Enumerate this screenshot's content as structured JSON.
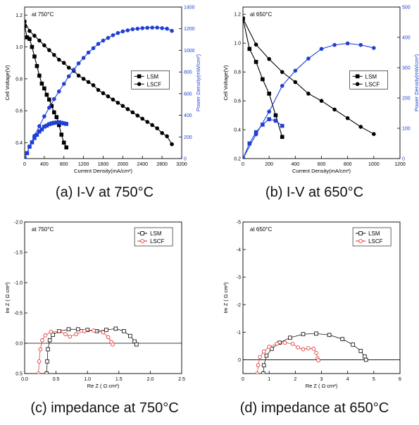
{
  "captions": [
    "(a) I-V at 750°C",
    "(b) I-V at 650°C",
    "(c) impedance at 750°C",
    "(d) impedance at 650°C"
  ],
  "colors": {
    "black": "#000000",
    "blue": "#1f3fd6",
    "red": "#e02020"
  },
  "chart_data": [
    {
      "type": "line",
      "annotation": "at 750°C",
      "xlabel": "Current Density(mA/cm²)",
      "ylabel": "Cell Voltage(V)",
      "y2label": "Power Density(mW/cm²)",
      "xlim": [
        0,
        3200
      ],
      "ylim": [
        0.3,
        1.25
      ],
      "y2lim": [
        0,
        1400
      ],
      "xticks": [
        0,
        400,
        800,
        1200,
        1600,
        2000,
        2400,
        2800,
        3200
      ],
      "yticks": [
        0.4,
        0.6,
        0.8,
        1.0,
        1.2
      ],
      "y2ticks": [
        0,
        200,
        400,
        600,
        800,
        1000,
        1200,
        1400
      ],
      "legend": {
        "position": "center-right",
        "entries": [
          "LSM",
          "LSCF"
        ]
      },
      "series": [
        {
          "name": "LSM",
          "axis": "left",
          "color": "#000000",
          "marker": "square",
          "points": [
            [
              0,
              1.13
            ],
            [
              50,
              1.06
            ],
            [
              100,
              1.05
            ],
            [
              150,
              1.0
            ],
            [
              200,
              0.94
            ],
            [
              250,
              0.88
            ],
            [
              300,
              0.82
            ],
            [
              350,
              0.77
            ],
            [
              400,
              0.74
            ],
            [
              450,
              0.7
            ],
            [
              500,
              0.67
            ],
            [
              550,
              0.63
            ],
            [
              600,
              0.59
            ],
            [
              650,
              0.56
            ],
            [
              700,
              0.51
            ],
            [
              750,
              0.45
            ],
            [
              800,
              0.4
            ],
            [
              850,
              0.37
            ]
          ]
        },
        {
          "name": "LSCF",
          "axis": "left",
          "color": "#000000",
          "marker": "circle",
          "points": [
            [
              0,
              1.16
            ],
            [
              100,
              1.1
            ],
            [
              200,
              1.07
            ],
            [
              300,
              1.04
            ],
            [
              400,
              1.01
            ],
            [
              500,
              0.98
            ],
            [
              600,
              0.95
            ],
            [
              700,
              0.92
            ],
            [
              800,
              0.9
            ],
            [
              900,
              0.87
            ],
            [
              1000,
              0.85
            ],
            [
              1100,
              0.82
            ],
            [
              1200,
              0.8
            ],
            [
              1300,
              0.78
            ],
            [
              1400,
              0.76
            ],
            [
              1500,
              0.73
            ],
            [
              1600,
              0.71
            ],
            [
              1700,
              0.69
            ],
            [
              1800,
              0.67
            ],
            [
              1900,
              0.65
            ],
            [
              2000,
              0.63
            ],
            [
              2100,
              0.61
            ],
            [
              2200,
              0.59
            ],
            [
              2300,
              0.57
            ],
            [
              2400,
              0.55
            ],
            [
              2500,
              0.53
            ],
            [
              2600,
              0.51
            ],
            [
              2700,
              0.49
            ],
            [
              2800,
              0.46
            ],
            [
              2900,
              0.44
            ],
            [
              3000,
              0.39
            ]
          ]
        },
        {
          "name": "LSM",
          "axis": "right",
          "color": "#1f3fd6",
          "marker": "square",
          "points": [
            [
              0,
              0
            ],
            [
              50,
              50
            ],
            [
              100,
              110
            ],
            [
              150,
              150
            ],
            [
              200,
              190
            ],
            [
              250,
              220
            ],
            [
              300,
              250
            ],
            [
              350,
              270
            ],
            [
              400,
              295
            ],
            [
              450,
              305
            ],
            [
              500,
              318
            ],
            [
              550,
              325
            ],
            [
              600,
              330
            ],
            [
              650,
              333
            ],
            [
              700,
              336
            ],
            [
              750,
              330
            ],
            [
              800,
              325
            ],
            [
              850,
              320
            ]
          ]
        },
        {
          "name": "LSCF",
          "axis": "right",
          "color": "#1f3fd6",
          "marker": "circle",
          "points": [
            [
              0,
              0
            ],
            [
              100,
              110
            ],
            [
              200,
              210
            ],
            [
              300,
              300
            ],
            [
              400,
              390
            ],
            [
              500,
              470
            ],
            [
              600,
              550
            ],
            [
              700,
              620
            ],
            [
              800,
              690
            ],
            [
              900,
              760
            ],
            [
              1000,
              820
            ],
            [
              1100,
              880
            ],
            [
              1200,
              930
            ],
            [
              1300,
              980
            ],
            [
              1400,
              1020
            ],
            [
              1500,
              1060
            ],
            [
              1600,
              1090
            ],
            [
              1700,
              1115
            ],
            [
              1800,
              1140
            ],
            [
              1900,
              1160
            ],
            [
              2000,
              1175
            ],
            [
              2100,
              1185
            ],
            [
              2200,
              1195
            ],
            [
              2300,
              1200
            ],
            [
              2400,
              1205
            ],
            [
              2500,
              1208
            ],
            [
              2600,
              1210
            ],
            [
              2700,
              1210
            ],
            [
              2800,
              1205
            ],
            [
              2900,
              1200
            ],
            [
              3000,
              1180
            ]
          ]
        }
      ]
    },
    {
      "type": "line",
      "annotation": "at 650°C",
      "xlabel": "Current Density(mA/cm²)",
      "ylabel": "Cell Voltage(V)",
      "y2label": "Power Density(mW/cm²)",
      "xlim": [
        0,
        1200
      ],
      "ylim": [
        0.2,
        1.25
      ],
      "y2lim": [
        0,
        500
      ],
      "xticks": [
        0,
        200,
        400,
        600,
        800,
        1000,
        1200
      ],
      "yticks": [
        0.2,
        0.4,
        0.6,
        0.8,
        1.0,
        1.2
      ],
      "y2ticks": [
        0,
        100,
        200,
        300,
        400,
        500
      ],
      "legend": {
        "position": "center-right",
        "entries": [
          "LSM",
          "LSCF"
        ]
      },
      "series": [
        {
          "name": "LSM",
          "axis": "left",
          "color": "#000000",
          "marker": "square",
          "points": [
            [
              0,
              1.17
            ],
            [
              50,
              0.96
            ],
            [
              100,
              0.87
            ],
            [
              150,
              0.75
            ],
            [
              200,
              0.65
            ],
            [
              250,
              0.5
            ],
            [
              300,
              0.35
            ]
          ]
        },
        {
          "name": "LSCF",
          "axis": "left",
          "color": "#000000",
          "marker": "circle",
          "points": [
            [
              0,
              1.17
            ],
            [
              100,
              0.99
            ],
            [
              200,
              0.89
            ],
            [
              300,
              0.8
            ],
            [
              400,
              0.73
            ],
            [
              500,
              0.65
            ],
            [
              600,
              0.6
            ],
            [
              700,
              0.54
            ],
            [
              800,
              0.48
            ],
            [
              900,
              0.42
            ],
            [
              1000,
              0.37
            ]
          ]
        },
        {
          "name": "LSM",
          "axis": "right",
          "color": "#1f3fd6",
          "marker": "square",
          "points": [
            [
              0,
              0
            ],
            [
              50,
              50
            ],
            [
              100,
              87
            ],
            [
              150,
              112
            ],
            [
              200,
              130
            ],
            [
              250,
              125
            ],
            [
              300,
              108
            ]
          ]
        },
        {
          "name": "LSCF",
          "axis": "right",
          "color": "#1f3fd6",
          "marker": "circle",
          "points": [
            [
              0,
              0
            ],
            [
              100,
              80
            ],
            [
              200,
              155
            ],
            [
              300,
              240
            ],
            [
              400,
              290
            ],
            [
              500,
              330
            ],
            [
              600,
              362
            ],
            [
              700,
              375
            ],
            [
              800,
              380
            ],
            [
              900,
              375
            ],
            [
              1000,
              365
            ]
          ]
        }
      ]
    },
    {
      "type": "scatter",
      "annotation": "at 750°C",
      "xlabel": "Re Z ( Ω cm²)",
      "ylabel": "Im Z ( Ω cm²)",
      "xlim": [
        0,
        2.5
      ],
      "ylim": [
        -2.0,
        0.5
      ],
      "xticks": [
        0.0,
        0.5,
        1.0,
        1.5,
        2.0,
        2.5
      ],
      "xtick_labels": [
        "0.0",
        "0.5",
        "1.0",
        "1.5",
        "2.0",
        "2.5"
      ],
      "yticks": [
        -2.0,
        -1.5,
        -1.0,
        -0.5,
        0.0,
        0.5
      ],
      "ytick_labels": [
        "-2.0",
        "-1.5",
        "-1.0",
        "-0.5",
        "0.0",
        "0.5"
      ],
      "legend": {
        "position": "top-right",
        "entries": [
          "LSM",
          "LSCF"
        ]
      },
      "series": [
        {
          "name": "LSM",
          "color": "#000000",
          "marker": "open-square",
          "points": [
            [
              0.35,
              0.5
            ],
            [
              0.36,
              0.3
            ],
            [
              0.37,
              0.1
            ],
            [
              0.4,
              -0.05
            ],
            [
              0.45,
              -0.14
            ],
            [
              0.55,
              -0.2
            ],
            [
              0.7,
              -0.23
            ],
            [
              0.85,
              -0.23
            ],
            [
              1.0,
              -0.22
            ],
            [
              1.15,
              -0.2
            ],
            [
              1.3,
              -0.22
            ],
            [
              1.45,
              -0.24
            ],
            [
              1.58,
              -0.2
            ],
            [
              1.68,
              -0.12
            ],
            [
              1.75,
              -0.03
            ],
            [
              1.78,
              0.02
            ]
          ]
        },
        {
          "name": "LSCF",
          "color": "#e02020",
          "marker": "open-circle",
          "points": [
            [
              0.22,
              0.5
            ],
            [
              0.23,
              0.3
            ],
            [
              0.25,
              0.1
            ],
            [
              0.28,
              -0.05
            ],
            [
              0.33,
              -0.13
            ],
            [
              0.42,
              -0.19
            ],
            [
              0.55,
              -0.2
            ],
            [
              0.65,
              -0.15
            ],
            [
              0.72,
              -0.11
            ],
            [
              0.82,
              -0.15
            ],
            [
              0.95,
              -0.2
            ],
            [
              1.1,
              -0.21
            ],
            [
              1.25,
              -0.18
            ],
            [
              1.33,
              -0.1
            ],
            [
              1.38,
              -0.02
            ],
            [
              1.4,
              0.02
            ]
          ]
        }
      ]
    },
    {
      "type": "scatter",
      "annotation": "at 650°C",
      "xlabel": "Re Z ( Ω cm²)",
      "ylabel": "Im Z ( Ω cm²)",
      "xlim": [
        0,
        6
      ],
      "ylim": [
        -5,
        0.5
      ],
      "xticks": [
        0,
        1,
        2,
        3,
        4,
        5,
        6
      ],
      "xtick_labels": [
        "0",
        "1",
        "2",
        "3",
        "4",
        "5",
        "6"
      ],
      "yticks": [
        -5,
        -4,
        -3,
        -2,
        -1,
        0
      ],
      "ytick_labels": [
        "-5",
        "-4",
        "-3",
        "-2",
        "-1",
        "0"
      ],
      "legend": {
        "position": "top-right",
        "entries": [
          "LSM",
          "LSCF"
        ]
      },
      "series": [
        {
          "name": "LSM",
          "color": "#000000",
          "marker": "open-square",
          "points": [
            [
              0.78,
              0.5
            ],
            [
              0.8,
              0.2
            ],
            [
              0.9,
              -0.15
            ],
            [
              1.1,
              -0.4
            ],
            [
              1.4,
              -0.62
            ],
            [
              1.8,
              -0.8
            ],
            [
              2.3,
              -0.93
            ],
            [
              2.8,
              -0.95
            ],
            [
              3.3,
              -0.9
            ],
            [
              3.8,
              -0.75
            ],
            [
              4.2,
              -0.55
            ],
            [
              4.5,
              -0.32
            ],
            [
              4.65,
              -0.12
            ],
            [
              4.7,
              0.0
            ]
          ]
        },
        {
          "name": "LSCF",
          "color": "#e02020",
          "marker": "open-circle",
          "points": [
            [
              0.55,
              0.5
            ],
            [
              0.58,
              0.2
            ],
            [
              0.65,
              -0.1
            ],
            [
              0.8,
              -0.3
            ],
            [
              1.0,
              -0.47
            ],
            [
              1.3,
              -0.58
            ],
            [
              1.6,
              -0.62
            ],
            [
              1.9,
              -0.58
            ],
            [
              2.1,
              -0.45
            ],
            [
              2.3,
              -0.38
            ],
            [
              2.5,
              -0.42
            ],
            [
              2.7,
              -0.4
            ],
            [
              2.8,
              -0.25
            ],
            [
              2.85,
              -0.05
            ],
            [
              2.88,
              0.02
            ]
          ]
        }
      ]
    }
  ]
}
